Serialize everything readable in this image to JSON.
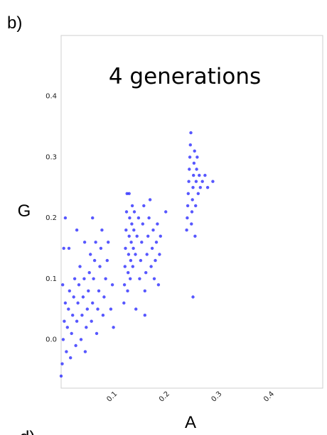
{
  "panel_labels": {
    "current": "b)",
    "next": "d)"
  },
  "chart_data": {
    "type": "scatter",
    "title": "4 generations",
    "xlabel": "A",
    "ylabel": "G",
    "xlim": [
      0.0,
      0.5
    ],
    "ylim": [
      -0.08,
      0.5
    ],
    "xticks": [
      {
        "value": 0.1,
        "label": "0.1"
      },
      {
        "value": 0.2,
        "label": "0.2"
      },
      {
        "value": 0.3,
        "label": "0.3"
      },
      {
        "value": 0.4,
        "label": "0.4"
      }
    ],
    "yticks": [
      {
        "value": 0.0,
        "label": "0.0"
      },
      {
        "value": 0.1,
        "label": "0.1"
      },
      {
        "value": 0.2,
        "label": "0.2"
      },
      {
        "value": 0.3,
        "label": "0.3"
      },
      {
        "value": 0.4,
        "label": "0.4"
      }
    ],
    "grid": false,
    "marker_color": "#1f1fff",
    "series": [
      {
        "values": [
          [
            0.0,
            -0.06
          ],
          [
            0.002,
            -0.04
          ],
          [
            0.004,
            0.0
          ],
          [
            0.006,
            0.03
          ],
          [
            0.008,
            0.06
          ],
          [
            0.003,
            0.09
          ],
          [
            0.01,
            -0.02
          ],
          [
            0.012,
            0.02
          ],
          [
            0.014,
            0.05
          ],
          [
            0.016,
            0.08
          ],
          [
            0.005,
            0.15
          ],
          [
            0.008,
            0.2
          ],
          [
            0.018,
            -0.03
          ],
          [
            0.02,
            0.01
          ],
          [
            0.022,
            0.04
          ],
          [
            0.024,
            0.07
          ],
          [
            0.026,
            0.1
          ],
          [
            0.028,
            -0.01
          ],
          [
            0.03,
            0.03
          ],
          [
            0.032,
            0.06
          ],
          [
            0.034,
            0.09
          ],
          [
            0.036,
            0.12
          ],
          [
            0.038,
            0.0
          ],
          [
            0.04,
            0.04
          ],
          [
            0.042,
            0.07
          ],
          [
            0.044,
            0.1
          ],
          [
            0.046,
            -0.02
          ],
          [
            0.048,
            0.02
          ],
          [
            0.05,
            0.05
          ],
          [
            0.052,
            0.08
          ],
          [
            0.054,
            0.11
          ],
          [
            0.056,
            0.14
          ],
          [
            0.058,
            0.03
          ],
          [
            0.06,
            0.06
          ],
          [
            0.062,
            0.1
          ],
          [
            0.064,
            0.13
          ],
          [
            0.066,
            0.16
          ],
          [
            0.068,
            0.01
          ],
          [
            0.07,
            0.05
          ],
          [
            0.072,
            0.08
          ],
          [
            0.074,
            0.12
          ],
          [
            0.076,
            0.15
          ],
          [
            0.078,
            0.18
          ],
          [
            0.08,
            0.04
          ],
          [
            0.082,
            0.07
          ],
          [
            0.085,
            0.1
          ],
          [
            0.088,
            0.13
          ],
          [
            0.09,
            0.16
          ],
          [
            0.095,
            0.05
          ],
          [
            0.098,
            0.09
          ],
          [
            0.1,
            0.02
          ],
          [
            0.06,
            0.2
          ],
          [
            0.03,
            0.18
          ],
          [
            0.015,
            0.15
          ],
          [
            0.045,
            0.16
          ],
          [
            0.12,
            0.06
          ],
          [
            0.121,
            0.09
          ],
          [
            0.122,
            0.12
          ],
          [
            0.123,
            0.15
          ],
          [
            0.124,
            0.18
          ],
          [
            0.125,
            0.21
          ],
          [
            0.126,
            0.24
          ],
          [
            0.127,
            0.08
          ],
          [
            0.128,
            0.11
          ],
          [
            0.129,
            0.14
          ],
          [
            0.13,
            0.17
          ],
          [
            0.131,
            0.2
          ],
          [
            0.132,
            0.1
          ],
          [
            0.133,
            0.13
          ],
          [
            0.134,
            0.16
          ],
          [
            0.135,
            0.19
          ],
          [
            0.136,
            0.22
          ],
          [
            0.137,
            0.12
          ],
          [
            0.138,
            0.15
          ],
          [
            0.139,
            0.18
          ],
          [
            0.14,
            0.21
          ],
          [
            0.142,
            0.14
          ],
          [
            0.145,
            0.17
          ],
          [
            0.148,
            0.2
          ],
          [
            0.15,
            0.1
          ],
          [
            0.152,
            0.13
          ],
          [
            0.154,
            0.16
          ],
          [
            0.156,
            0.19
          ],
          [
            0.158,
            0.22
          ],
          [
            0.16,
            0.08
          ],
          [
            0.162,
            0.11
          ],
          [
            0.164,
            0.14
          ],
          [
            0.166,
            0.17
          ],
          [
            0.168,
            0.2
          ],
          [
            0.17,
            0.23
          ],
          [
            0.172,
            0.12
          ],
          [
            0.174,
            0.15
          ],
          [
            0.176,
            0.18
          ],
          [
            0.178,
            0.1
          ],
          [
            0.18,
            0.13
          ],
          [
            0.182,
            0.16
          ],
          [
            0.184,
            0.19
          ],
          [
            0.186,
            0.09
          ],
          [
            0.188,
            0.14
          ],
          [
            0.19,
            0.17
          ],
          [
            0.2,
            0.21
          ],
          [
            0.143,
            0.05
          ],
          [
            0.16,
            0.04
          ],
          [
            0.13,
            0.24
          ],
          [
            0.24,
            0.18
          ],
          [
            0.241,
            0.2
          ],
          [
            0.242,
            0.22
          ],
          [
            0.243,
            0.24
          ],
          [
            0.244,
            0.26
          ],
          [
            0.245,
            0.28
          ],
          [
            0.246,
            0.3
          ],
          [
            0.247,
            0.32
          ],
          [
            0.248,
            0.34
          ],
          [
            0.249,
            0.19
          ],
          [
            0.25,
            0.21
          ],
          [
            0.251,
            0.23
          ],
          [
            0.252,
            0.25
          ],
          [
            0.253,
            0.27
          ],
          [
            0.254,
            0.29
          ],
          [
            0.255,
            0.31
          ],
          [
            0.256,
            0.17
          ],
          [
            0.257,
            0.22
          ],
          [
            0.258,
            0.26
          ],
          [
            0.259,
            0.28
          ],
          [
            0.26,
            0.3
          ],
          [
            0.262,
            0.24
          ],
          [
            0.264,
            0.27
          ],
          [
            0.266,
            0.25
          ],
          [
            0.27,
            0.26
          ],
          [
            0.275,
            0.27
          ],
          [
            0.28,
            0.25
          ],
          [
            0.29,
            0.26
          ],
          [
            0.252,
            0.07
          ]
        ]
      }
    ]
  }
}
